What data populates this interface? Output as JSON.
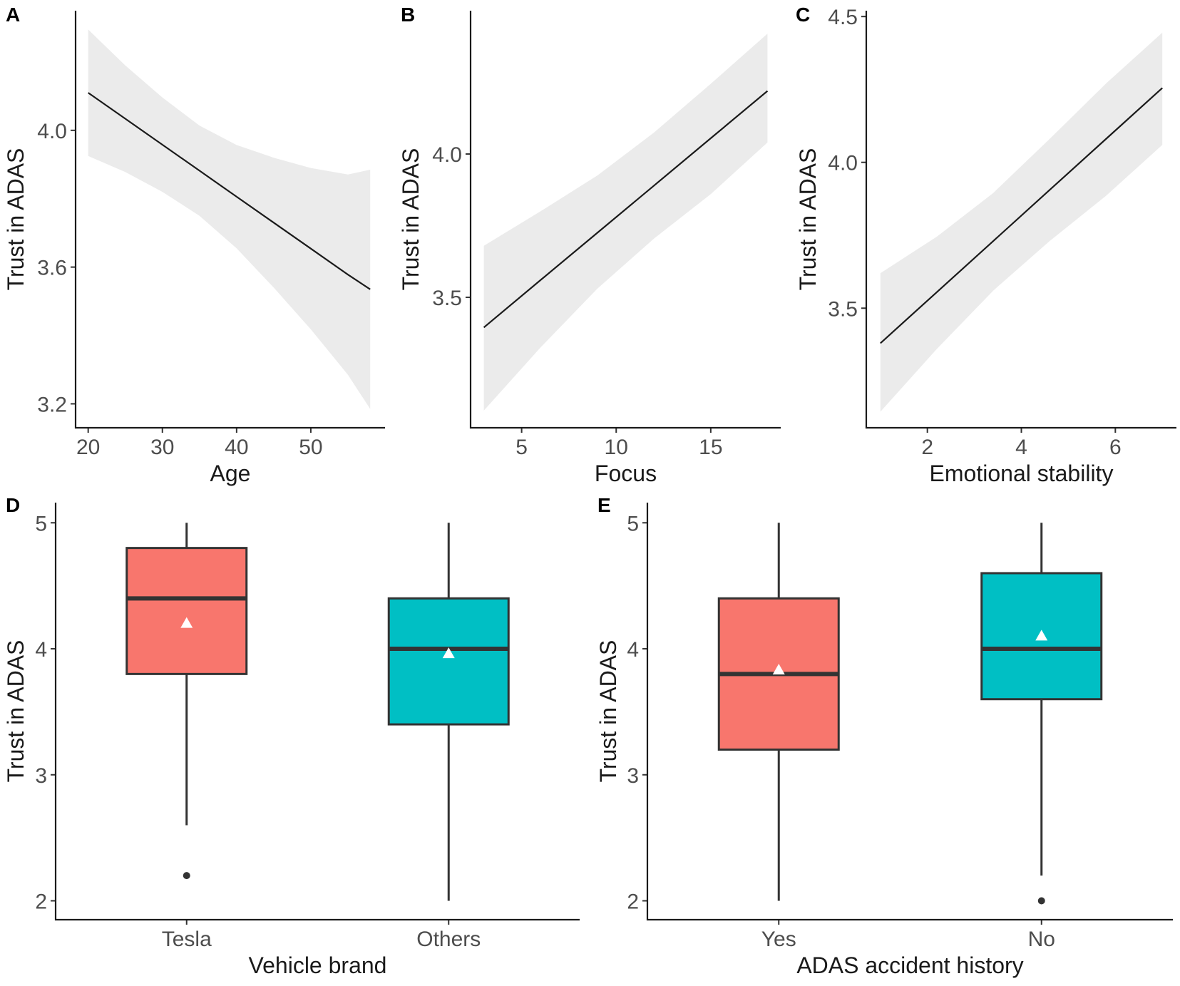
{
  "colors": {
    "band": "#ebebeb",
    "line": "#1a1a1a",
    "box_red": "#f8766d",
    "box_teal": "#00bfc4",
    "box_stroke": "#333333",
    "mean_marker": "#ffffff"
  },
  "chart_data": [
    {
      "id": "A",
      "panel_label": "A",
      "type": "line",
      "title": "",
      "xlabel": "Age",
      "ylabel": "Trust in ADAS",
      "xlim": [
        18.3,
        60.0
      ],
      "ylim": [
        3.13,
        4.35
      ],
      "x_ticks": [
        20,
        30,
        40,
        50
      ],
      "x_tick_labels": [
        "20",
        "30",
        "40",
        "50"
      ],
      "y_ticks": [
        3.2,
        3.6,
        4.0
      ],
      "y_tick_labels": [
        "3.2",
        "3.6",
        "4.0"
      ],
      "series": [
        {
          "name": "fit",
          "x": [
            20,
            25,
            30,
            35,
            40,
            45,
            50,
            55,
            58
          ],
          "y": [
            4.11,
            4.034,
            3.958,
            3.882,
            3.806,
            3.73,
            3.654,
            3.578,
            3.535
          ],
          "lower": [
            3.925,
            3.878,
            3.82,
            3.75,
            3.655,
            3.54,
            3.418,
            3.285,
            3.185
          ],
          "upper": [
            4.295,
            4.19,
            4.096,
            4.014,
            3.957,
            3.92,
            3.89,
            3.871,
            3.885
          ]
        }
      ],
      "grid": false
    },
    {
      "id": "B",
      "panel_label": "B",
      "type": "line",
      "title": "",
      "xlabel": "Focus",
      "ylabel": "Trust in ADAS",
      "xlim": [
        2.3,
        18.7
      ],
      "ylim": [
        3.045,
        4.5
      ],
      "x_ticks": [
        5,
        10,
        15
      ],
      "x_tick_labels": [
        "5",
        "10",
        "15"
      ],
      "y_ticks": [
        3.5,
        4.0
      ],
      "y_tick_labels": [
        "3.5",
        "4.0"
      ],
      "series": [
        {
          "name": "fit",
          "x": [
            3,
            6,
            9,
            12,
            15,
            18
          ],
          "y": [
            3.395,
            3.56,
            3.725,
            3.89,
            4.055,
            4.22
          ],
          "lower": [
            3.105,
            3.325,
            3.53,
            3.705,
            3.86,
            4.04
          ],
          "upper": [
            3.68,
            3.8,
            3.925,
            4.075,
            4.245,
            4.42
          ]
        }
      ],
      "grid": false
    },
    {
      "id": "C",
      "panel_label": "C",
      "type": "line",
      "title": "",
      "xlabel": "Emotional stability",
      "ylabel": "Trust in ADAS",
      "xlim": [
        0.7,
        7.3
      ],
      "ylim": [
        3.09,
        4.52
      ],
      "x_ticks": [
        2,
        4,
        6
      ],
      "x_tick_labels": [
        "2",
        "4",
        "6"
      ],
      "y_ticks": [
        3.5,
        4.0,
        4.5
      ],
      "y_tick_labels": [
        "3.5",
        "4.0",
        "4.5"
      ],
      "series": [
        {
          "name": "fit",
          "x": [
            1,
            2.2,
            3.4,
            4.6,
            5.8,
            7
          ],
          "y": [
            3.38,
            3.555,
            3.73,
            3.905,
            4.08,
            4.255
          ],
          "lower": [
            3.145,
            3.36,
            3.56,
            3.73,
            3.885,
            4.06
          ],
          "upper": [
            3.62,
            3.745,
            3.895,
            4.08,
            4.27,
            4.445
          ]
        }
      ],
      "grid": false
    },
    {
      "id": "D",
      "panel_label": "D",
      "type": "box",
      "title": "",
      "xlabel": "Vehicle brand",
      "ylabel": "Trust in ADAS",
      "ylim": [
        1.85,
        5.16
      ],
      "y_ticks": [
        2,
        3,
        4,
        5
      ],
      "y_tick_labels": [
        "2",
        "3",
        "4",
        "5"
      ],
      "categories": [
        "Tesla",
        "Others"
      ],
      "boxes": [
        {
          "category": "Tesla",
          "color": "#f8766d",
          "lower_whisker": 2.6,
          "q1": 3.8,
          "median": 4.4,
          "q3": 4.8,
          "upper_whisker": 5.0,
          "mean": 4.2,
          "outliers": [
            2.2
          ]
        },
        {
          "category": "Others",
          "color": "#00bfc4",
          "lower_whisker": 2.0,
          "q1": 3.4,
          "median": 4.0,
          "q3": 4.4,
          "upper_whisker": 5.0,
          "mean": 3.96,
          "outliers": []
        }
      ],
      "grid": false
    },
    {
      "id": "E",
      "panel_label": "E",
      "type": "box",
      "title": "",
      "xlabel": "ADAS accident history",
      "ylabel": "Trust in ADAS",
      "ylim": [
        1.85,
        5.16
      ],
      "y_ticks": [
        2,
        3,
        4,
        5
      ],
      "y_tick_labels": [
        "2",
        "3",
        "4",
        "5"
      ],
      "categories": [
        "Yes",
        "No"
      ],
      "boxes": [
        {
          "category": "Yes",
          "color": "#f8766d",
          "lower_whisker": 2.0,
          "q1": 3.2,
          "median": 3.8,
          "q3": 4.4,
          "upper_whisker": 5.0,
          "mean": 3.83,
          "outliers": []
        },
        {
          "category": "No",
          "color": "#00bfc4",
          "lower_whisker": 2.2,
          "q1": 3.6,
          "median": 4.0,
          "q3": 4.6,
          "upper_whisker": 5.0,
          "mean": 4.1,
          "outliers": [
            2.0
          ]
        }
      ],
      "grid": false
    }
  ]
}
